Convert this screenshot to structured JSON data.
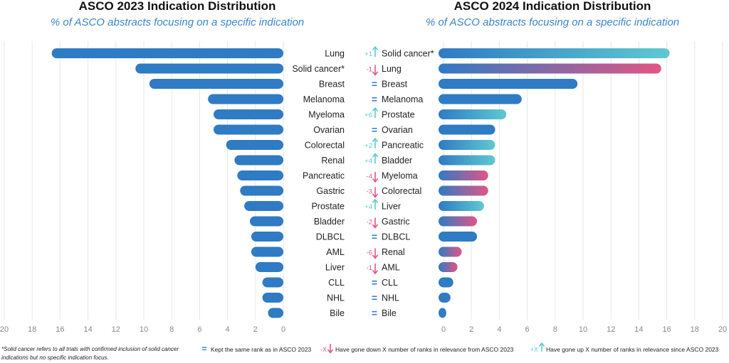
{
  "colors": {
    "blue": "#2f7bc4",
    "teal": "#5ec9d0",
    "pink": "#e25585",
    "grid": "#e6e6e6"
  },
  "chart_data": [
    {
      "type": "bar",
      "title": "ASCO 2023 Indication Distribution",
      "subtitle": "% of ASCO abstracts focusing on a specific indication",
      "orientation": "horizontal-reversed",
      "xlim": [
        0,
        20
      ],
      "xticks": [
        "20",
        "18",
        "16",
        "14",
        "12",
        "10",
        "8",
        "6",
        "4",
        "2",
        "0"
      ],
      "categories": [
        "Lung",
        "Solid cancer*",
        "Breast",
        "Melanoma",
        "Myeloma",
        "Ovarian",
        "Colorectal",
        "Renal",
        "Pancreatic",
        "Gastric",
        "Prostate",
        "Bladder",
        "DLBCL",
        "AML",
        "Liver",
        "CLL",
        "NHL",
        "Bile"
      ],
      "values": [
        16.6,
        10.6,
        9.6,
        5.4,
        5.0,
        5.0,
        4.1,
        3.5,
        3.3,
        3.1,
        2.8,
        2.4,
        2.3,
        2.3,
        2.0,
        1.5,
        1.5,
        1.1
      ]
    },
    {
      "type": "bar",
      "title": "ASCO 2024 Indication Distribution",
      "subtitle": "% of ASCO abstracts focusing on a specific indication",
      "orientation": "horizontal",
      "xlim": [
        0,
        20
      ],
      "xticks": [
        "0",
        "2",
        "4",
        "6",
        "8",
        "10",
        "12",
        "14",
        "16",
        "18",
        "20"
      ],
      "categories": [
        "Solid cancer*",
        "Lung",
        "Breast",
        "Melanoma",
        "Prostate",
        "Ovarian",
        "Pancreatic",
        "Bladder",
        "Myeloma",
        "Colorectal",
        "Liver",
        "Gastric",
        "DLBCL",
        "Renal",
        "AML",
        "CLL",
        "NHL",
        "Bile"
      ],
      "values": [
        16.2,
        15.6,
        9.6,
        5.6,
        4.5,
        3.7,
        3.7,
        3.7,
        3.2,
        3.2,
        2.9,
        2.4,
        2.4,
        1.3,
        1.0,
        0.7,
        0.5,
        0.2
      ],
      "rank_change": [
        "+1",
        "-1",
        "=",
        "=",
        "+6",
        "=",
        "+2",
        "+4",
        "-4",
        "-3",
        "+4",
        "-2",
        "=",
        "-6",
        "-1",
        "=",
        "=",
        "="
      ]
    }
  ],
  "footnote_line1": "*Solid cancer refers to all trials with confirmed inclusion of solid cancer",
  "footnote_line2": "indications but no specific indication focus.",
  "legend": {
    "same_symbol": "=",
    "same_label": "Kept the same rank as in ASCO 2023",
    "down_symbol": "-X",
    "down_label": "Have gone down X number of ranks in relevance from ASCO 2023",
    "up_symbol": "+X",
    "up_label": "Have gone up X number of ranks in relevance since ASCO 2023"
  }
}
